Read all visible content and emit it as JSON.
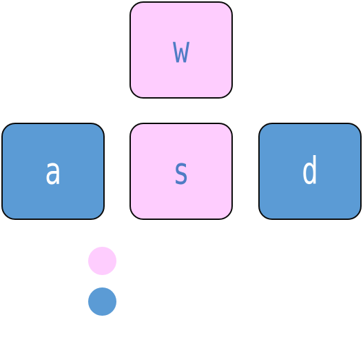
{
  "colors": {
    "pressed_fill": "#fecdfe",
    "pressed_text": "#4f7cc4",
    "released_fill": "#5b9bd5",
    "released_text": "#ffffff",
    "border": "#0b0b0b"
  },
  "keys": [
    {
      "id": "w",
      "label": "w",
      "state": "pressed"
    },
    {
      "id": "a",
      "label": "a",
      "state": "released"
    },
    {
      "id": "s",
      "label": "s",
      "state": "pressed"
    },
    {
      "id": "d",
      "label": "d",
      "state": "released"
    }
  ],
  "legend": [
    {
      "state": "pressed"
    },
    {
      "state": "released"
    }
  ]
}
